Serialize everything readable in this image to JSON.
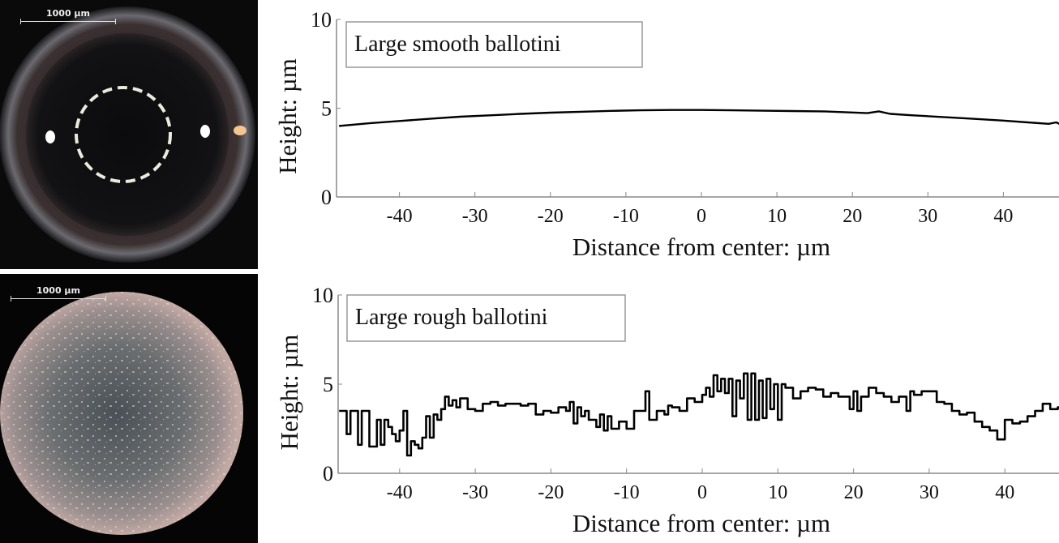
{
  "images": [
    {
      "label": "smooth-ballotini-micrograph",
      "scale_bar": "1000 µm"
    },
    {
      "label": "rough-ballotini-micrograph",
      "scale_bar": "1000 µm"
    }
  ],
  "chart_data": [
    {
      "type": "line",
      "title": "Large smooth ballotini",
      "xlabel": "Distance from center: µm",
      "ylabel": "Height: µm",
      "xlim": [
        -48,
        48
      ],
      "ylim": [
        0,
        10
      ],
      "xticks": [
        -40,
        -30,
        -20,
        -10,
        0,
        10,
        20,
        30,
        40
      ],
      "yticks": [
        0,
        5,
        10
      ],
      "grid": false,
      "legend": "boxed label top-left",
      "series": [
        {
          "name": "Large smooth ballotini",
          "x": [
            -48,
            -44,
            -40,
            -36,
            -32,
            -28,
            -24,
            -20,
            -16,
            -12,
            -8,
            -4,
            0,
            4,
            8,
            12,
            16,
            20,
            22,
            23.5,
            25,
            28,
            32,
            36,
            40,
            44,
            46,
            47,
            48
          ],
          "y": [
            4.0,
            4.15,
            4.28,
            4.4,
            4.52,
            4.6,
            4.68,
            4.75,
            4.8,
            4.85,
            4.88,
            4.9,
            4.9,
            4.88,
            4.86,
            4.84,
            4.82,
            4.76,
            4.72,
            4.82,
            4.68,
            4.6,
            4.5,
            4.4,
            4.3,
            4.18,
            4.12,
            4.2,
            4.0
          ]
        }
      ]
    },
    {
      "type": "line",
      "title": "Large rough ballotini",
      "xlabel": "Distance from center: µm",
      "ylabel": "Height: µm",
      "xlim": [
        -48,
        48
      ],
      "ylim": [
        0,
        10
      ],
      "xticks": [
        -40,
        -30,
        -20,
        -10,
        0,
        10,
        20,
        30,
        40
      ],
      "yticks": [
        0,
        5,
        10
      ],
      "grid": false,
      "legend": "boxed label top-left",
      "series": [
        {
          "name": "Large rough ballotini",
          "x": [
            -48,
            -47,
            -46.5,
            -46,
            -45.5,
            -45,
            -44.5,
            -44,
            -43,
            -42.5,
            -42,
            -41.5,
            -41,
            -40.5,
            -40,
            -39.5,
            -39,
            -38.5,
            -38,
            -37.5,
            -37,
            -36.5,
            -36,
            -35.5,
            -35,
            -34.5,
            -34,
            -33.5,
            -33,
            -32.5,
            -32,
            -31,
            -30,
            -29,
            -28,
            -27,
            -26,
            -25,
            -24,
            -23,
            -22,
            -21,
            -20,
            -19,
            -18,
            -17.5,
            -17,
            -16.5,
            -16,
            -15.5,
            -15,
            -14,
            -13.5,
            -13,
            -12.5,
            -12,
            -11,
            -10,
            -9,
            -8,
            -7.5,
            -7,
            -6,
            -5,
            -4.5,
            -4,
            -3,
            -2,
            -1,
            0,
            0.5,
            1,
            1.5,
            2,
            2.5,
            3,
            3.5,
            4,
            4.5,
            5,
            5.5,
            6,
            6.5,
            7,
            7.5,
            8,
            8.5,
            9,
            9.5,
            10,
            10.5,
            11,
            12,
            13,
            14,
            15,
            16,
            17,
            18,
            19,
            19.5,
            20,
            20.5,
            21,
            22,
            23,
            24,
            25,
            26,
            27,
            27.5,
            28,
            29,
            30,
            31,
            32,
            33,
            34,
            35,
            36,
            37,
            38,
            39,
            40,
            41,
            42,
            43,
            44,
            45,
            46,
            47,
            48
          ],
          "y": [
            3.5,
            2.2,
            3.5,
            3.5,
            1.6,
            3.5,
            3.5,
            1.5,
            3.0,
            1.6,
            3.0,
            2.6,
            2.2,
            1.8,
            2.4,
            3.5,
            1.0,
            1.8,
            1.6,
            1.4,
            2.0,
            3.2,
            2.0,
            3.3,
            3.0,
            3.6,
            4.3,
            3.8,
            4.1,
            3.7,
            4.2,
            3.6,
            3.5,
            3.9,
            4.0,
            3.8,
            3.9,
            3.9,
            3.8,
            3.9,
            3.3,
            3.5,
            3.4,
            3.7,
            3.5,
            4.0,
            2.8,
            3.7,
            3.2,
            3.5,
            3.0,
            2.6,
            3.3,
            2.4,
            3.2,
            2.5,
            2.9,
            2.5,
            3.5,
            3.5,
            4.6,
            3.0,
            3.5,
            3.3,
            3.8,
            3.7,
            3.5,
            4.2,
            4.0,
            4.4,
            4.8,
            4.3,
            5.5,
            4.6,
            5.3,
            4.5,
            5.3,
            3.2,
            5.2,
            4.2,
            5.6,
            3.0,
            5.6,
            3.0,
            5.2,
            3.1,
            5.3,
            3.6,
            5.0,
            3.0,
            5.0,
            4.8,
            4.2,
            4.6,
            4.8,
            4.7,
            4.3,
            4.5,
            4.3,
            4.3,
            3.6,
            4.6,
            3.5,
            4.3,
            4.8,
            4.5,
            4.3,
            4.0,
            4.3,
            3.5,
            4.6,
            4.4,
            4.6,
            4.6,
            4.0,
            3.9,
            3.5,
            3.3,
            3.4,
            2.9,
            2.6,
            2.4,
            1.9,
            3.0,
            2.8,
            2.9,
            3.2,
            3.5,
            3.9,
            3.6,
            3.7,
            3.3
          ]
        }
      ]
    }
  ]
}
